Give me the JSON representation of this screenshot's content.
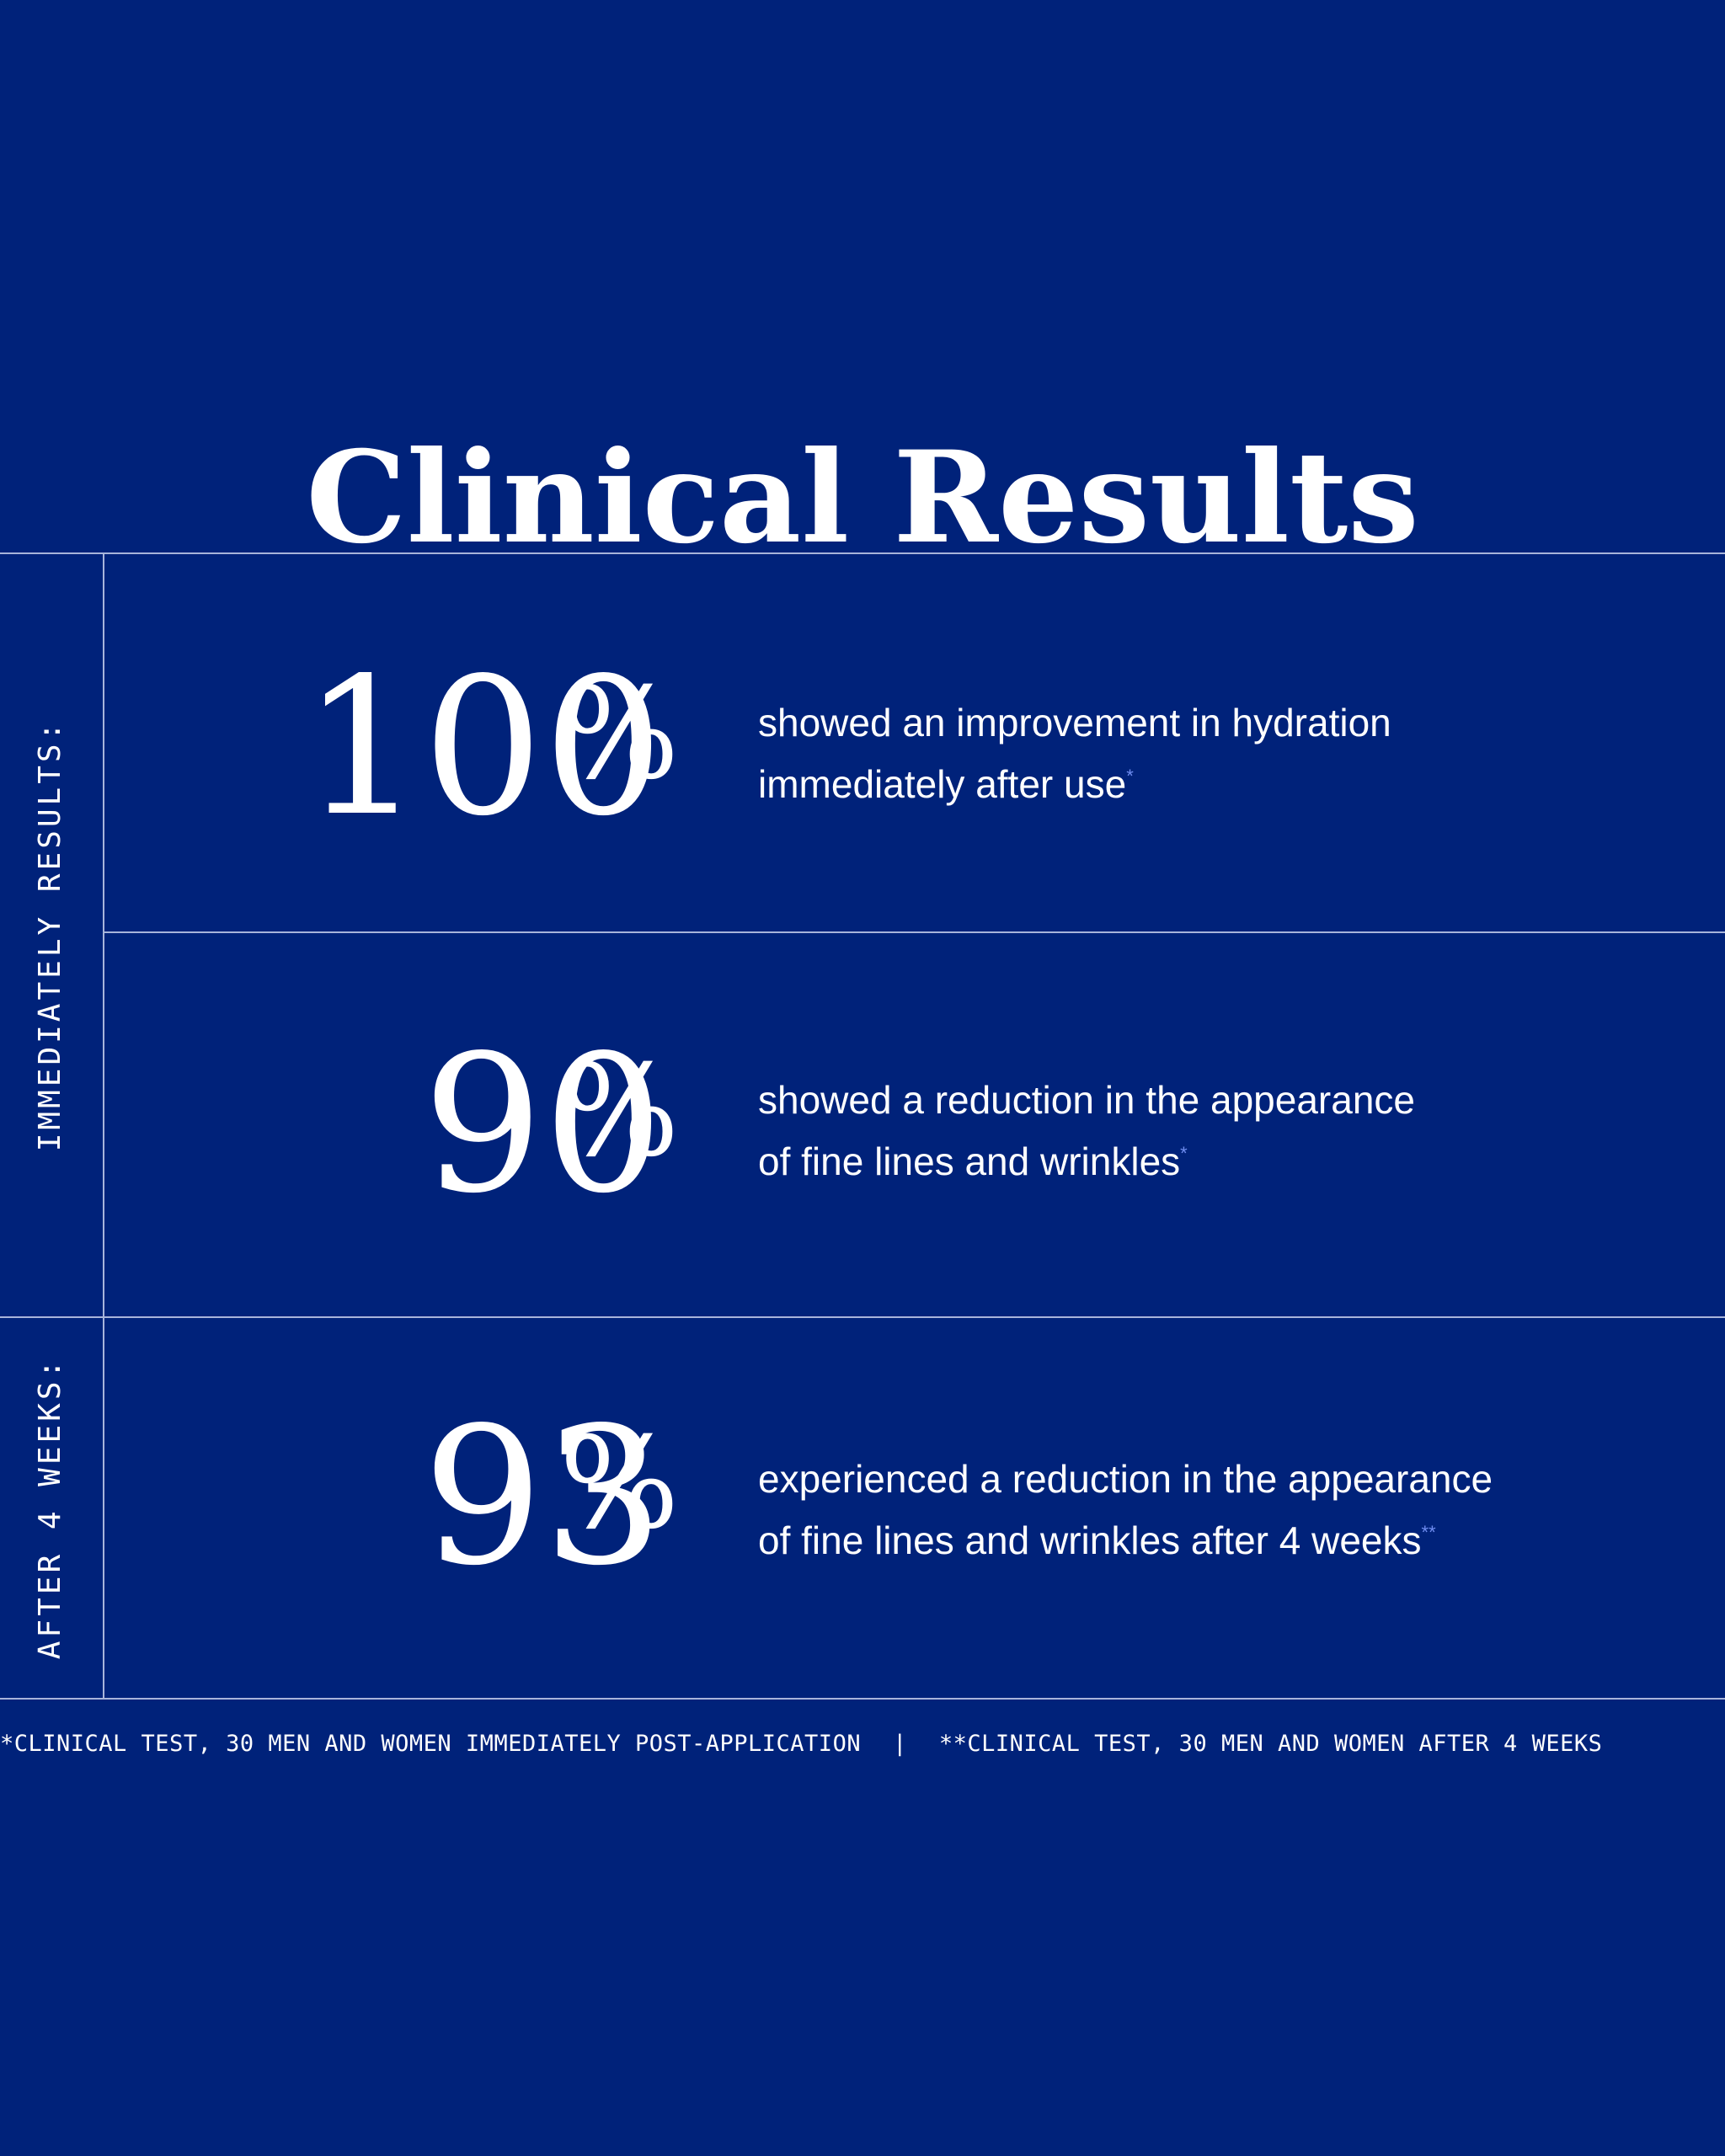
{
  "title": "Clinical Results",
  "labels": {
    "immediate": "IMMEDIATELY RESULTS:",
    "weeks": "AFTER 4 WEEKS:"
  },
  "stats": [
    {
      "value": "100",
      "percent": "%",
      "line1": "showed an improvement in hydration",
      "line2": "immediately after use",
      "mark": "*"
    },
    {
      "value": "90",
      "percent": "%",
      "line1": "showed a reduction in the appearance",
      "line2": "of fine lines and wrinkles",
      "mark": "*"
    },
    {
      "value": "93",
      "percent": "%",
      "line1": "experienced a reduction in the appearance",
      "line2": "of fine lines and wrinkles after 4 weeks",
      "mark": "**"
    }
  ],
  "footnotes": {
    "first": "*CLINICAL TEST, 30 MEN AND WOMEN IMMEDIATELY POST-APPLICATION",
    "separator": "|",
    "second": "**CLINICAL TEST, 30 MEN AND WOMEN AFTER 4 WEEKS"
  },
  "colors": {
    "background": "#00227a",
    "text": "#ffffff",
    "rule": "#a8b4da",
    "footnote_mark": "#6f8df0"
  }
}
